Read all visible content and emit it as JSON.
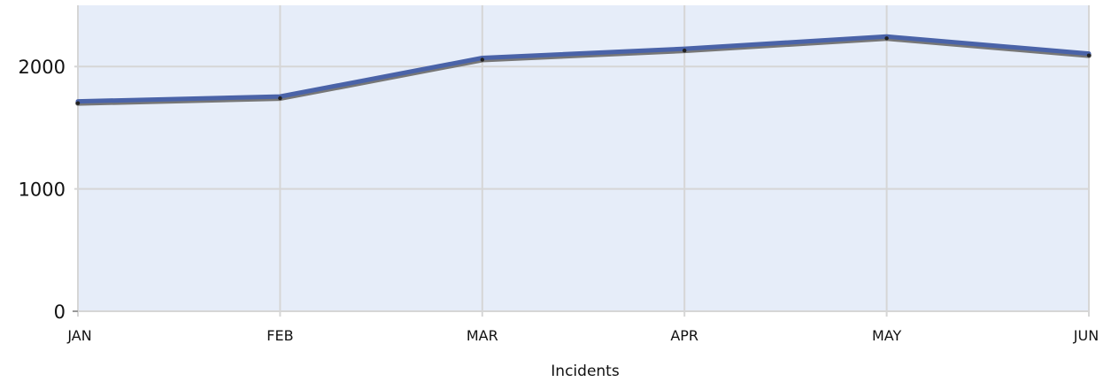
{
  "chart_data": {
    "type": "line",
    "categories": [
      "JAN",
      "FEB",
      "MAR",
      "APR",
      "MAY",
      "JUN"
    ],
    "series": [
      {
        "values": [
          1715,
          1755,
          2070,
          2145,
          2245,
          2105
        ],
        "color": "#4a63a8"
      }
    ],
    "xlabel": "Incidents",
    "ylabel": "",
    "ylim": [
      0,
      2500
    ],
    "yticks": [
      0,
      1000,
      2000
    ],
    "grid": true,
    "legend": "none",
    "colors": {
      "plot_background": "#e6edf9",
      "grid": "#d6d6d6",
      "line": "#4a63a8",
      "line_shadow": "#777777",
      "marker": "#222222"
    }
  }
}
